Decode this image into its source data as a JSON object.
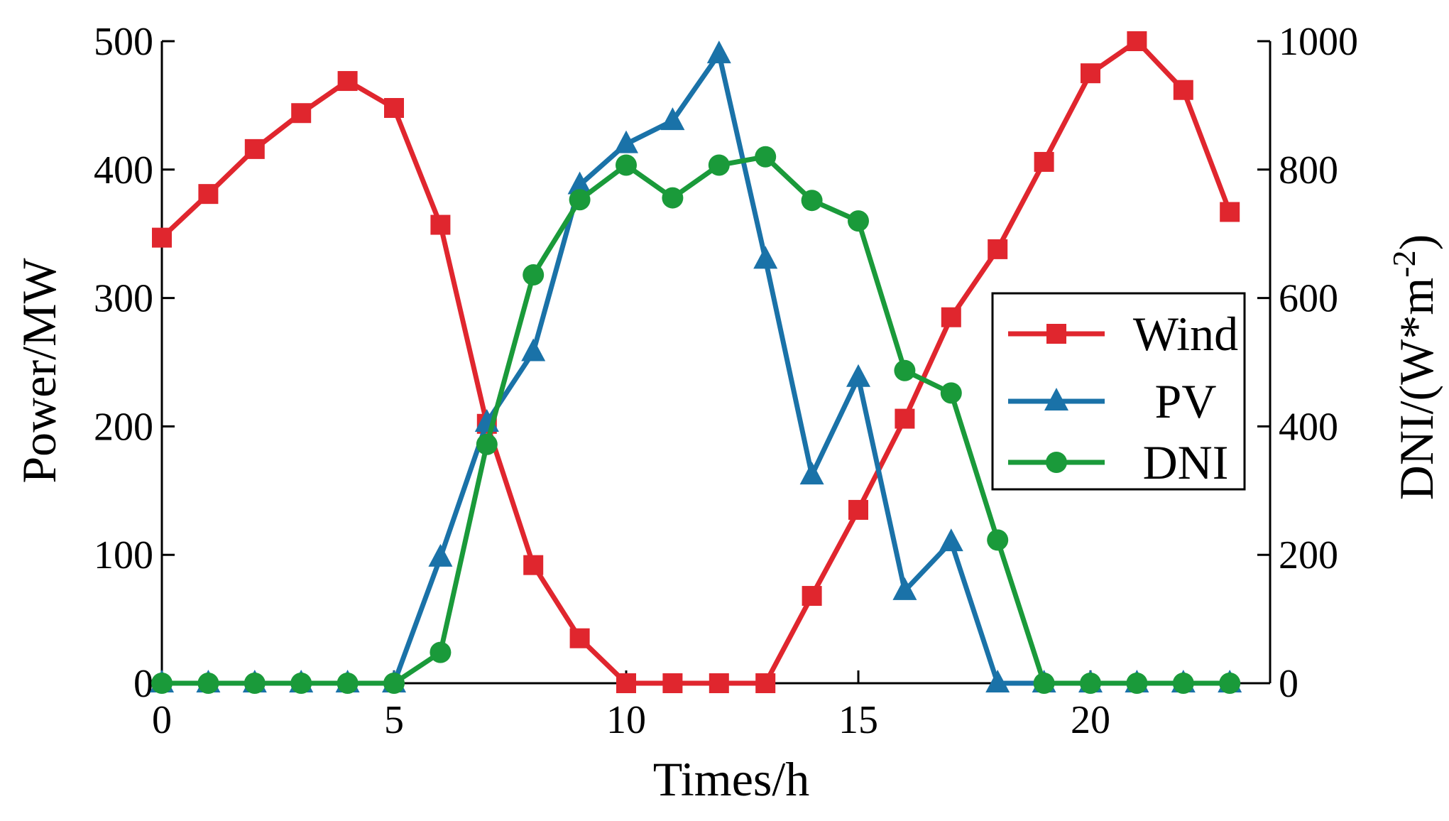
{
  "chart_data": {
    "type": "line",
    "title": "",
    "xlabel": "Times/h",
    "ylabel_left": "Power/MW",
    "ylabel_right": "DNI/(W*m-2)",
    "ylabel_right_parts": {
      "base": "DNI/(W*m",
      "exp": "-2",
      "close": ")"
    },
    "x": [
      0,
      1,
      2,
      3,
      4,
      5,
      6,
      7,
      8,
      9,
      10,
      11,
      12,
      13,
      14,
      15,
      16,
      17,
      18,
      19,
      20,
      21,
      22,
      23
    ],
    "xlim": [
      0,
      24
    ],
    "ylim_left": [
      0,
      500
    ],
    "ylim_right": [
      0,
      1000
    ],
    "xticks": [
      0,
      5,
      10,
      15,
      20
    ],
    "yticks_left": [
      0,
      100,
      200,
      300,
      400,
      500
    ],
    "yticks_right": [
      0,
      200,
      400,
      600,
      800,
      1000
    ],
    "series": [
      {
        "name": "Wind",
        "axis": "left",
        "marker": "square",
        "color": "#e0262e",
        "values": [
          347,
          381,
          416,
          444,
          469,
          448,
          357,
          202,
          92,
          35,
          0,
          0,
          0,
          0,
          68,
          135,
          206,
          285,
          338,
          406,
          475,
          500,
          462,
          367
        ]
      },
      {
        "name": "PV",
        "axis": "left",
        "marker": "triangle",
        "color": "#1a72a8",
        "values": [
          0,
          0,
          0,
          0,
          0,
          0,
          98,
          203,
          258,
          388,
          420,
          438,
          490,
          330,
          162,
          238,
          72,
          110,
          0,
          0,
          0,
          0,
          0,
          0
        ]
      },
      {
        "name": "DNI",
        "axis": "right",
        "marker": "circle",
        "color": "#1a9a3a",
        "values": [
          0,
          0,
          0,
          0,
          0,
          0,
          48,
          372,
          636,
          753,
          807,
          756,
          807,
          820,
          752,
          720,
          487,
          452,
          223,
          0,
          0,
          0,
          0,
          0
        ]
      }
    ],
    "legend": {
      "position": "right",
      "entries": [
        "Wind",
        "PV",
        "DNI"
      ]
    }
  }
}
